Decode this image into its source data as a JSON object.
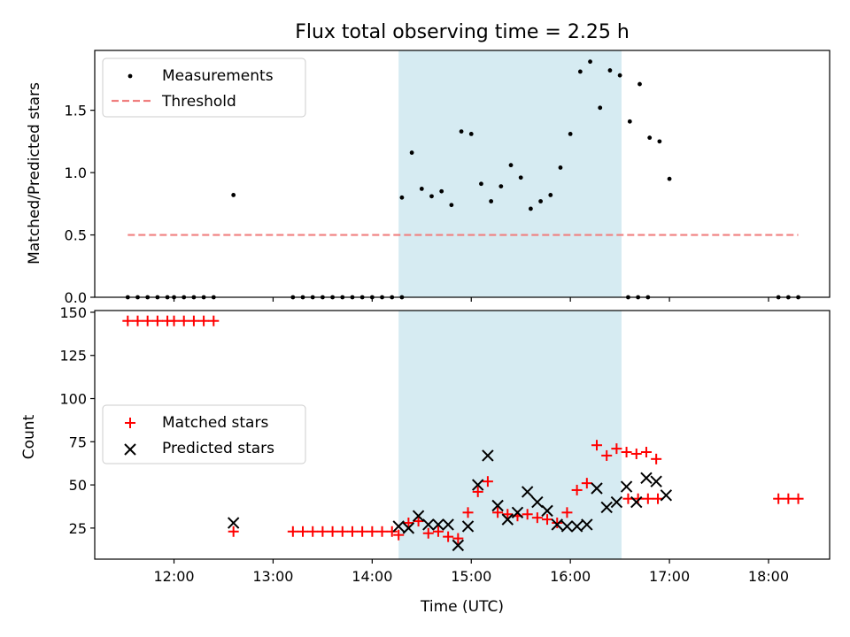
{
  "chart_data": [
    {
      "type": "scatter",
      "title": "Flux total observing time = 2.25 h",
      "xlabel": "",
      "ylabel": "Matched/Predicted stars",
      "xlim": [
        "11:12",
        "18:37"
      ],
      "ylim": [
        0,
        1.98
      ],
      "yticks": [
        0.0,
        0.5,
        1.0,
        1.5
      ],
      "ytick_labels": [
        "0.0",
        "0.5",
        "1.0",
        "1.5"
      ],
      "xticks": [
        "12:00",
        "13:00",
        "14:00",
        "15:00",
        "16:00",
        "17:00",
        "18:00"
      ],
      "xtick_labels": [
        "",
        "",
        "",
        "",
        "",
        "",
        ""
      ],
      "grid": false,
      "legend_position": "upper-left",
      "shaded_interval": {
        "start": "14:16",
        "end": "16:31",
        "color": "#add8e6"
      },
      "series": [
        {
          "name": "Measurements",
          "kind": "scatter",
          "color": "#000000",
          "points": [
            [
              "11:32",
              0
            ],
            [
              "11:38",
              0
            ],
            [
              "11:44",
              0
            ],
            [
              "11:50",
              0
            ],
            [
              "11:56",
              0
            ],
            [
              "12:00",
              0
            ],
            [
              "12:06",
              0
            ],
            [
              "12:12",
              0
            ],
            [
              "12:18",
              0
            ],
            [
              "12:24",
              0
            ],
            [
              "12:36",
              0.82
            ],
            [
              "13:12",
              0
            ],
            [
              "13:18",
              0
            ],
            [
              "13:24",
              0
            ],
            [
              "13:30",
              0
            ],
            [
              "13:36",
              0
            ],
            [
              "13:42",
              0
            ],
            [
              "13:48",
              0
            ],
            [
              "13:54",
              0
            ],
            [
              "14:00",
              0
            ],
            [
              "14:06",
              0
            ],
            [
              "14:12",
              0
            ],
            [
              "14:18",
              0
            ],
            [
              "14:18",
              0.8
            ],
            [
              "14:24",
              1.16
            ],
            [
              "14:30",
              0.87
            ],
            [
              "14:36",
              0.81
            ],
            [
              "14:42",
              0.85
            ],
            [
              "14:48",
              0.74
            ],
            [
              "14:54",
              1.33
            ],
            [
              "15:00",
              1.31
            ],
            [
              "15:06",
              0.91
            ],
            [
              "15:12",
              0.77
            ],
            [
              "15:18",
              0.89
            ],
            [
              "15:24",
              1.06
            ],
            [
              "15:30",
              0.96
            ],
            [
              "15:36",
              0.71
            ],
            [
              "15:42",
              0.77
            ],
            [
              "15:48",
              0.82
            ],
            [
              "15:54",
              1.04
            ],
            [
              "16:00",
              1.31
            ],
            [
              "16:06",
              1.81
            ],
            [
              "16:12",
              1.89
            ],
            [
              "16:18",
              1.52
            ],
            [
              "16:24",
              1.82
            ],
            [
              "16:30",
              1.78
            ],
            [
              "16:36",
              1.41
            ],
            [
              "16:42",
              1.71
            ],
            [
              "16:48",
              1.28
            ],
            [
              "16:54",
              1.25
            ],
            [
              "17:00",
              0.95
            ],
            [
              "16:35",
              0
            ],
            [
              "16:41",
              0
            ],
            [
              "16:47",
              0
            ],
            [
              "18:06",
              0
            ],
            [
              "18:12",
              0
            ],
            [
              "18:18",
              0
            ]
          ]
        },
        {
          "name": "Threshold",
          "kind": "line",
          "color": "#f08080",
          "dash": "dashed",
          "x": [
            "11:32",
            "18:18"
          ],
          "y": [
            0.5,
            0.5
          ]
        }
      ]
    },
    {
      "type": "scatter",
      "title": "",
      "xlabel": "Time (UTC)",
      "ylabel": "Count",
      "xlim": [
        "11:12",
        "18:37"
      ],
      "ylim": [
        7,
        151
      ],
      "yticks": [
        25,
        50,
        75,
        100,
        125,
        150
      ],
      "ytick_labels": [
        "25",
        "50",
        "75",
        "100",
        "125",
        "150"
      ],
      "xticks": [
        "12:00",
        "13:00",
        "14:00",
        "15:00",
        "16:00",
        "17:00",
        "18:00"
      ],
      "xtick_labels": [
        "12:00",
        "13:00",
        "14:00",
        "15:00",
        "16:00",
        "17:00",
        "18:00"
      ],
      "grid": false,
      "legend_position": "center-left",
      "shaded_interval": {
        "start": "14:16",
        "end": "16:31",
        "color": "#add8e6"
      },
      "series": [
        {
          "name": "Matched stars",
          "kind": "plus",
          "color": "#ff0000",
          "points": [
            [
              "11:32",
              145
            ],
            [
              "11:38",
              145
            ],
            [
              "11:44",
              145
            ],
            [
              "11:50",
              145
            ],
            [
              "11:56",
              145
            ],
            [
              "12:00",
              145
            ],
            [
              "12:06",
              145
            ],
            [
              "12:12",
              145
            ],
            [
              "12:18",
              145
            ],
            [
              "12:24",
              145
            ],
            [
              "12:36",
              23
            ],
            [
              "13:12",
              23
            ],
            [
              "13:18",
              23
            ],
            [
              "13:24",
              23
            ],
            [
              "13:30",
              23
            ],
            [
              "13:36",
              23
            ],
            [
              "13:42",
              23
            ],
            [
              "13:48",
              23
            ],
            [
              "13:54",
              23
            ],
            [
              "14:00",
              23
            ],
            [
              "14:06",
              23
            ],
            [
              "14:12",
              23
            ],
            [
              "14:16",
              21
            ],
            [
              "14:22",
              28
            ],
            [
              "14:28",
              29
            ],
            [
              "14:34",
              22
            ],
            [
              "14:40",
              23
            ],
            [
              "14:46",
              20
            ],
            [
              "14:52",
              19
            ],
            [
              "14:58",
              34
            ],
            [
              "15:04",
              46
            ],
            [
              "15:10",
              52
            ],
            [
              "15:16",
              34
            ],
            [
              "15:22",
              33
            ],
            [
              "15:28",
              32
            ],
            [
              "15:34",
              33
            ],
            [
              "15:40",
              31
            ],
            [
              "15:46",
              30
            ],
            [
              "15:52",
              28
            ],
            [
              "15:58",
              34
            ],
            [
              "16:04",
              47
            ],
            [
              "16:10",
              51
            ],
            [
              "16:16",
              73
            ],
            [
              "16:22",
              67
            ],
            [
              "16:28",
              71
            ],
            [
              "16:34",
              69
            ],
            [
              "16:40",
              68
            ],
            [
              "16:46",
              69
            ],
            [
              "16:52",
              65
            ],
            [
              "16:35",
              42
            ],
            [
              "16:41",
              42
            ],
            [
              "16:47",
              42
            ],
            [
              "16:53",
              42
            ],
            [
              "18:06",
              42
            ],
            [
              "18:12",
              42
            ],
            [
              "18:18",
              42
            ]
          ]
        },
        {
          "name": "Predicted stars",
          "kind": "x",
          "color": "#000000",
          "points": [
            [
              "12:36",
              28
            ],
            [
              "14:16",
              26
            ],
            [
              "14:22",
              25
            ],
            [
              "14:28",
              32
            ],
            [
              "14:34",
              27
            ],
            [
              "14:40",
              27
            ],
            [
              "14:46",
              27
            ],
            [
              "14:52",
              15
            ],
            [
              "14:58",
              26
            ],
            [
              "15:04",
              50
            ],
            [
              "15:10",
              67
            ],
            [
              "15:16",
              38
            ],
            [
              "15:22",
              30
            ],
            [
              "15:28",
              34
            ],
            [
              "15:34",
              46
            ],
            [
              "15:40",
              40
            ],
            [
              "15:46",
              35
            ],
            [
              "15:52",
              27
            ],
            [
              "15:58",
              26
            ],
            [
              "16:04",
              26
            ],
            [
              "16:10",
              27
            ],
            [
              "16:16",
              48
            ],
            [
              "16:22",
              37
            ],
            [
              "16:28",
              40
            ],
            [
              "16:34",
              49
            ],
            [
              "16:40",
              40
            ],
            [
              "16:46",
              54
            ],
            [
              "16:52",
              52
            ],
            [
              "16:58",
              44
            ]
          ]
        }
      ]
    }
  ]
}
